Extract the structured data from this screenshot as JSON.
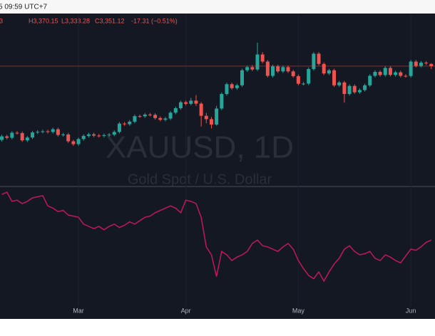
{
  "header": {
    "time": "5 09:59 UTC+7"
  },
  "chart_data": {
    "type": "candlestick",
    "legend": {
      "open": "3",
      "high": "H3,370.15",
      "low": "L3,333.28",
      "close": "C3,351.12",
      "change": "-17.31 (−0.51%)"
    },
    "watermark": {
      "symbol": "XAUUSD, 1D",
      "description": "Gold Spot / U.S. Dollar"
    },
    "categories": [
      null,
      null,
      null,
      null,
      null,
      null,
      null,
      null,
      null,
      null,
      null,
      null,
      null,
      null,
      null,
      "Mar",
      null,
      null,
      null,
      null,
      null,
      null,
      null,
      null,
      null,
      null,
      null,
      null,
      null,
      null,
      null,
      null,
      null,
      null,
      null,
      null,
      "Apr",
      null,
      null,
      null,
      null,
      null,
      null,
      null,
      null,
      null,
      null,
      null,
      null,
      null,
      null,
      null,
      null,
      null,
      null,
      null,
      null,
      null,
      "May",
      null,
      null,
      null,
      null,
      null,
      null,
      null,
      null,
      null,
      null,
      null,
      null,
      null,
      null,
      null,
      null,
      null,
      null,
      null,
      null,
      null,
      "Jun",
      null,
      null,
      null,
      null
    ],
    "open": [
      2885,
      2907,
      2898,
      2930,
      2928,
      2882,
      2900,
      2932,
      2936,
      2939,
      2935,
      2952,
      2916,
      2919,
      2876,
      2858,
      2890,
      2910,
      2920,
      2912,
      2910,
      2915,
      2918,
      2935,
      2988,
      2984,
      3000,
      3035,
      3034,
      3045,
      3043,
      3023,
      3012,
      3020,
      3057,
      3085,
      3123,
      3113,
      3133,
      3114,
      3037,
      3016,
      2982,
      3083,
      3175,
      3237,
      3212,
      3230,
      3325,
      3345,
      3330,
      3425,
      3380,
      3290,
      3350,
      3318,
      3345,
      3318,
      3288,
      3240,
      3241,
      3333,
      3430,
      3365,
      3305,
      3325,
      3230,
      3248,
      3175,
      3226,
      3186,
      3200,
      3230,
      3290,
      3315,
      3295,
      3340,
      3296,
      3312,
      3290,
      3289,
      3380,
      3353,
      3373,
      3365
    ],
    "high": [
      2917,
      2917,
      2940,
      2940,
      2938,
      2910,
      2942,
      2946,
      2949,
      2949,
      2962,
      2962,
      2929,
      2929,
      2886,
      2900,
      2920,
      2930,
      2930,
      2922,
      2925,
      2928,
      2945,
      2998,
      2998,
      3010,
      3045,
      3045,
      3055,
      3055,
      3053,
      3033,
      3030,
      3067,
      3095,
      3133,
      3133,
      3150,
      3168,
      3124,
      3055,
      3030,
      3100,
      3185,
      3247,
      3247,
      3240,
      3335,
      3355,
      3358,
      3500,
      3440,
      3390,
      3360,
      3360,
      3355,
      3355,
      3328,
      3298,
      3251,
      3343,
      3440,
      3440,
      3375,
      3335,
      3335,
      3258,
      3258,
      3236,
      3236,
      3210,
      3240,
      3300,
      3325,
      3325,
      3350,
      3350,
      3322,
      3322,
      3300,
      3390,
      3390,
      3383,
      3383,
      3370.15
    ],
    "low": [
      2875,
      2888,
      2888,
      2918,
      2872,
      2872,
      2890,
      2922,
      2926,
      2925,
      2925,
      2906,
      2906,
      2866,
      2848,
      2848,
      2880,
      2900,
      2902,
      2900,
      2900,
      2905,
      2908,
      2925,
      2974,
      2974,
      2990,
      3024,
      3024,
      3033,
      3013,
      3002,
      3002,
      3010,
      3047,
      3075,
      3103,
      3103,
      3100,
      2970,
      2990,
      2957,
      2975,
      3073,
      3165,
      3202,
      3202,
      3220,
      3315,
      3320,
      3320,
      3370,
      3280,
      3280,
      3308,
      3308,
      3308,
      3278,
      3230,
      3230,
      3231,
      3323,
      3355,
      3295,
      3295,
      3220,
      3220,
      3120,
      3165,
      3176,
      3176,
      3190,
      3220,
      3280,
      3285,
      3285,
      3286,
      3286,
      3280,
      3279,
      3279,
      3343,
      3343,
      3358,
      3333.28
    ],
    "close": [
      2907,
      2898,
      2930,
      2928,
      2882,
      2900,
      2932,
      2936,
      2939,
      2935,
      2952,
      2916,
      2919,
      2876,
      2858,
      2890,
      2910,
      2920,
      2912,
      2910,
      2915,
      2918,
      2935,
      2988,
      2984,
      3000,
      3035,
      3034,
      3045,
      3043,
      3023,
      3012,
      3020,
      3057,
      3085,
      3123,
      3113,
      3133,
      3114,
      3037,
      3016,
      2982,
      3083,
      3175,
      3237,
      3212,
      3230,
      3325,
      3345,
      3330,
      3425,
      3380,
      3290,
      3350,
      3318,
      3345,
      3318,
      3288,
      3240,
      3241,
      3333,
      3430,
      3365,
      3305,
      3325,
      3230,
      3248,
      3175,
      3226,
      3186,
      3200,
      3230,
      3290,
      3315,
      3295,
      3340,
      3296,
      3312,
      3290,
      3289,
      3380,
      3353,
      3373,
      3368.43,
      3351.12
    ],
    "up_color": "#26a69a",
    "down_color": "#ef5350",
    "ylim": [
      2590,
      3684
    ],
    "last_price_line": true,
    "indicator": {
      "type": "line",
      "color": "#c2185b",
      "ylim": [
        0,
        105
      ],
      "values": [
        98,
        100,
        92,
        93,
        90,
        92,
        95,
        96,
        97,
        88,
        86,
        83,
        84,
        80,
        79,
        78,
        72,
        70,
        68,
        70,
        67,
        70,
        72,
        69,
        71,
        74,
        72,
        75,
        78,
        79,
        82,
        84,
        86,
        88,
        86,
        82,
        93,
        92,
        90,
        78,
        52,
        45,
        26,
        48,
        45,
        40,
        43,
        45,
        48,
        55,
        58,
        53,
        52,
        50,
        48,
        52,
        55,
        50,
        40,
        33,
        27,
        24,
        30,
        22,
        30,
        37,
        42,
        50,
        53,
        48,
        45,
        46,
        48,
        42,
        40,
        45,
        43,
        40,
        38,
        44,
        50,
        49,
        52,
        56,
        58
      ]
    }
  }
}
